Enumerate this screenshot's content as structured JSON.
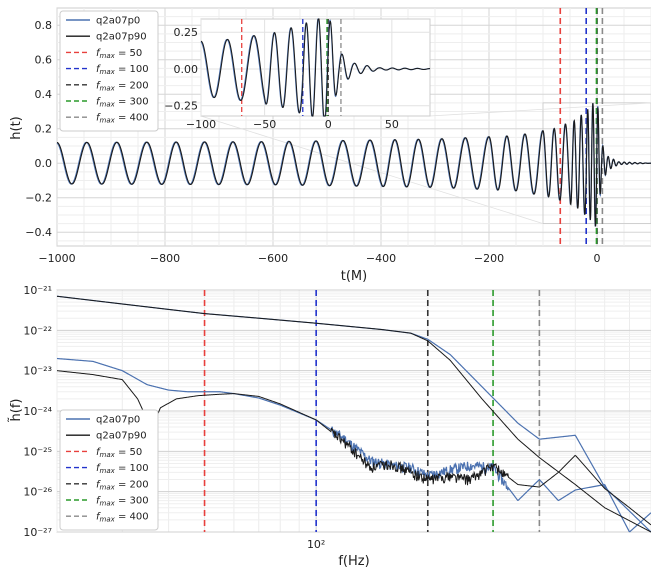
{
  "chart_data": [
    {
      "type": "line",
      "id": "time-domain",
      "xlabel": "t(M)",
      "ylabel": "h(t)",
      "xlim": [
        -1000,
        100
      ],
      "ylim": [
        -0.48,
        0.9
      ],
      "xticks": [
        -1000,
        -800,
        -600,
        -400,
        -200,
        0
      ],
      "xtick_labels": [
        "−1000",
        "−800",
        "−600",
        "−400",
        "−200",
        "0"
      ],
      "yticks": [
        -0.4,
        -0.2,
        0.0,
        0.2,
        0.4,
        0.6,
        0.8
      ],
      "ytick_labels": [
        "−0.4",
        "−0.2",
        "0.0",
        "0.2",
        "0.4",
        "0.6",
        "0.8"
      ],
      "grid": true,
      "legend_position": "top-left",
      "series": [
        {
          "name": "q2a07p0",
          "color": "#4c72b0"
        },
        {
          "name": "q2a07p90",
          "color": "#1a1a1a"
        }
      ],
      "waveform": {
        "phase_times": [
          -1000,
          -800,
          -600,
          -400,
          -200,
          -100,
          -50,
          -20,
          0,
          10,
          100
        ],
        "phase_cycles": [
          0,
          3.6,
          7.4,
          11.4,
          16.0,
          19.0,
          21.4,
          23.7,
          25.8,
          26.9,
          36.0
        ],
        "amp_times": [
          -1000,
          -600,
          -300,
          -150,
          -80,
          -40,
          -15,
          0,
          8,
          20,
          40,
          100
        ],
        "amp_values": [
          0.12,
          0.125,
          0.14,
          0.16,
          0.2,
          0.25,
          0.32,
          0.38,
          0.12,
          0.04,
          0.008,
          0.0
        ]
      },
      "fmax_lines": [
        {
          "label": "f_max = 50",
          "x": -68,
          "color": "#e8403d"
        },
        {
          "label": "f_max = 100",
          "x": -20,
          "color": "#2233cc"
        },
        {
          "label": "f_max = 200",
          "x": 0,
          "color": "#333333"
        },
        {
          "label": "f_max = 300",
          "x": -1,
          "color": "#2a9a2a"
        },
        {
          "label": "f_max = 400",
          "x": 10,
          "color": "#8a8a8a"
        }
      ],
      "inset": {
        "xlim": [
          -100,
          80
        ],
        "ylim": [
          -0.32,
          0.34
        ],
        "xticks": [
          -100,
          -50,
          0,
          50
        ],
        "xtick_labels": [
          "−100",
          "−50",
          "0",
          "50"
        ],
        "yticks": [
          -0.25,
          0.0,
          0.25
        ],
        "ytick_labels": [
          "−0.25",
          "0.00",
          "0.25"
        ],
        "fmax_lines": [
          {
            "x": -68,
            "color": "#e8403d"
          },
          {
            "x": -20,
            "color": "#2233cc"
          },
          {
            "x": 0,
            "color": "#333333"
          },
          {
            "x": -1,
            "color": "#2a9a2a"
          },
          {
            "x": 10,
            "color": "#8a8a8a"
          }
        ]
      }
    },
    {
      "type": "line",
      "id": "frequency-domain",
      "xlabel": "f(Hz)",
      "ylabel": "h̃(f)",
      "xscale": "log",
      "yscale": "log",
      "xlim": [
        20,
        800
      ],
      "ylim": [
        1e-27,
        1e-21
      ],
      "xtick_labels": [
        "10²"
      ],
      "ytick_labels": [
        "10⁻²¹",
        "10⁻²²",
        "10⁻²³",
        "10⁻²⁴",
        "10⁻²⁵",
        "10⁻²⁶",
        "10⁻²⁷"
      ],
      "grid": true,
      "legend_position": "lower-left",
      "series": [
        {
          "name": "q2a07p0",
          "color": "#4c72b0",
          "upper_f": [
            20,
            30,
            40,
            50,
            70,
            100,
            150,
            180,
            200,
            230,
            280,
            350,
            400,
            500,
            600,
            800
          ],
          "upper_v": [
            7e-22,
            4.5e-22,
            3.3e-22,
            2.6e-22,
            2e-22,
            1.5e-22,
            1.05e-22,
            8.5e-23,
            6e-23,
            2.5e-23,
            4e-24,
            5e-25,
            2e-25,
            2.5e-25,
            1.3e-26,
            1e-27
          ],
          "lower_f": [
            20,
            25,
            30,
            35,
            40,
            45,
            50,
            55,
            60,
            70,
            80,
            100,
            120,
            140,
            160,
            180,
            200,
            230,
            260,
            300,
            350,
            400,
            450,
            500,
            600,
            700,
            800
          ],
          "lower_v": [
            2e-23,
            1.7e-23,
            1e-23,
            4.5e-24,
            3.3e-24,
            3e-24,
            3e-24,
            3e-24,
            2.7e-24,
            2.1e-24,
            1.4e-24,
            6e-25,
            2e-25,
            6e-26,
            4.5e-26,
            4e-26,
            2.5e-26,
            3.5e-26,
            4.5e-26,
            4e-26,
            6e-27,
            2e-26,
            6e-27,
            1.1e-26,
            1.5e-26,
            1e-27,
            3e-27
          ]
        },
        {
          "name": "q2a07p90",
          "color": "#1a1a1a",
          "upper_f": [
            20,
            30,
            40,
            50,
            70,
            100,
            150,
            180,
            200,
            230,
            280,
            350,
            400,
            500,
            600,
            800
          ],
          "upper_v": [
            7e-22,
            4.5e-22,
            3.3e-22,
            2.6e-22,
            2e-22,
            1.5e-22,
            1.05e-22,
            8.5e-23,
            5.5e-23,
            1.8e-23,
            2e-24,
            2e-25,
            7e-26,
            1.5e-26,
            4e-27,
            1e-27
          ],
          "lower_f": [
            20,
            25,
            30,
            33,
            36,
            38,
            42,
            48,
            55,
            60,
            70,
            80,
            100,
            120,
            140,
            160,
            180,
            200,
            230,
            260,
            300,
            350,
            400,
            450,
            500,
            600,
            700,
            800
          ],
          "lower_v": [
            1e-23,
            8e-24,
            6e-24,
            2e-24,
            3.5e-25,
            1.2e-24,
            2e-24,
            2.4e-24,
            2.6e-24,
            2.7e-24,
            2.3e-24,
            1.5e-24,
            6e-25,
            1.6e-25,
            4e-26,
            5e-26,
            3e-26,
            2e-26,
            2.5e-26,
            2e-26,
            4.5e-26,
            1.5e-26,
            1.3e-26,
            3e-26,
            8e-26,
            1.2e-26,
            4e-27,
            1.5e-27
          ]
        }
      ],
      "fmax_lines": [
        {
          "label": "f_max = 50",
          "x": 50,
          "color": "#e8403d"
        },
        {
          "label": "f_max = 100",
          "x": 100,
          "color": "#2233cc"
        },
        {
          "label": "f_max = 200",
          "x": 200,
          "color": "#333333"
        },
        {
          "label": "f_max = 300",
          "x": 300,
          "color": "#2a9a2a"
        },
        {
          "label": "f_max = 400",
          "x": 400,
          "color": "#8a8a8a"
        }
      ]
    }
  ]
}
